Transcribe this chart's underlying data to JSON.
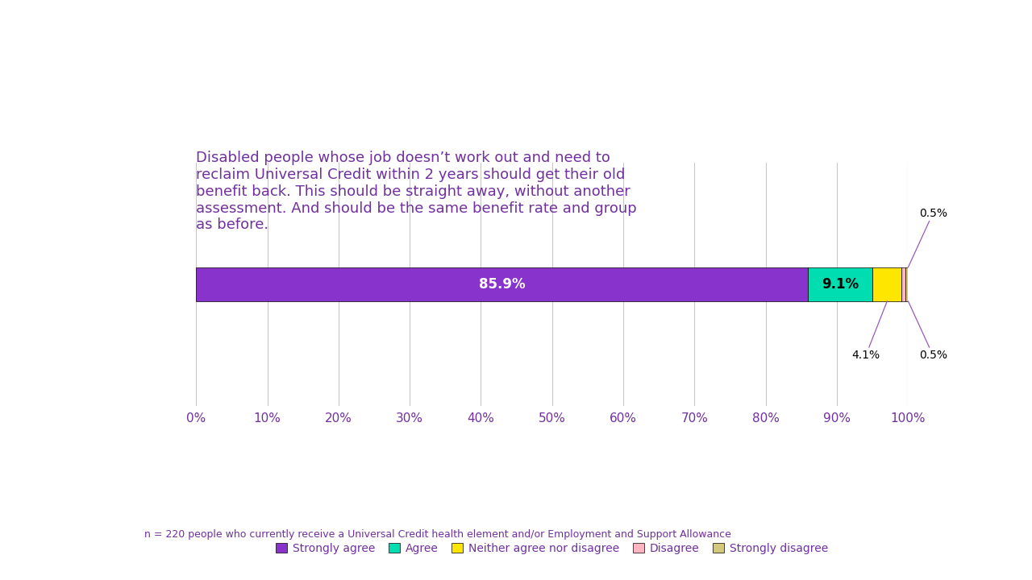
{
  "title": "Disabled people whose job doesn’t work out and need to\nreclaim Universal Credit within 2 years should get their old\nbenefit back. This should be straight away, without another\nassessment. And should be the same benefit rate and group\nas before.",
  "title_color": "#7030A0",
  "title_fontsize": 13,
  "categories": [
    "Strongly agree",
    "Agree",
    "Neither agree nor disagree",
    "Disagree",
    "Strongly disagree"
  ],
  "values": [
    85.9,
    9.1,
    4.1,
    0.5,
    0.5
  ],
  "colors": [
    "#8833CC",
    "#00DDB0",
    "#FFE600",
    "#FFB6C1",
    "#D4C87A"
  ],
  "bar_label_colors": [
    "white",
    "black",
    "black",
    "black",
    "black"
  ],
  "inside_labels": [
    "85.9%",
    "9.1%",
    "",
    "",
    ""
  ],
  "legend_labels": [
    "Strongly agree",
    "Agree",
    "Neither agree nor disagree",
    "Disagree",
    "Strongly disagree"
  ],
  "footnote": "n = 220 people who currently receive a Universal Credit health element and/or Employment and Support Allowance",
  "footnote_color": "#7030A0",
  "xticks": [
    0,
    10,
    20,
    30,
    40,
    50,
    60,
    70,
    80,
    90,
    100
  ],
  "xtick_labels": [
    "0%",
    "10%",
    "20%",
    "30%",
    "40%",
    "50%",
    "60%",
    "70%",
    "80%",
    "90%",
    "100%"
  ],
  "background_color": "#FFFFFF",
  "grid_color": "#C8C8C8",
  "annotation_color": "#9B59B6"
}
